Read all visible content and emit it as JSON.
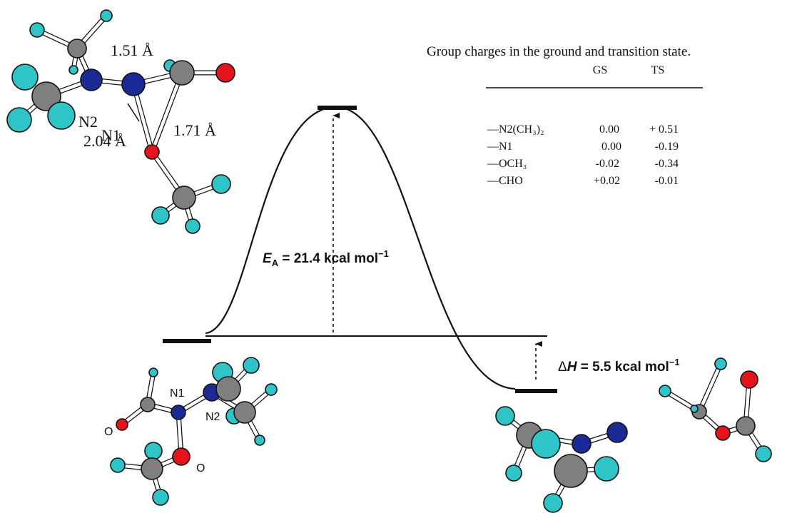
{
  "ts_labels": {
    "bond_n1_n2": "1.51 Å",
    "n2": "N2",
    "n1": "N1",
    "bond_n1_o": "2.04 Å",
    "bond_c_o": "1.71 Å"
  },
  "gs_labels": {
    "n1": "N1",
    "n2": "N2",
    "o_carbonyl": "O",
    "o_methoxy": "O"
  },
  "activation": {
    "symbol": "E",
    "subscript": "A",
    "text": " = 21.4 kcal mol",
    "superscript": "−1"
  },
  "enthalpy": {
    "delta": "Δ",
    "symbol": "H",
    "text": " = 5.5 kcal mol",
    "superscript": "−1"
  },
  "table": {
    "caption": "Group charges in the ground and transition state.",
    "headers": [
      "GS",
      "TS"
    ],
    "rows": [
      [
        "—N2(CH₃)₂",
        "0.00",
        "+ 0.51"
      ],
      [
        "—N1",
        "0.00",
        "-0.19"
      ],
      [
        "—OCH₃",
        "-0.02",
        "-0.34"
      ],
      [
        "—CHO",
        "+0.02",
        "-0.01"
      ]
    ]
  }
}
